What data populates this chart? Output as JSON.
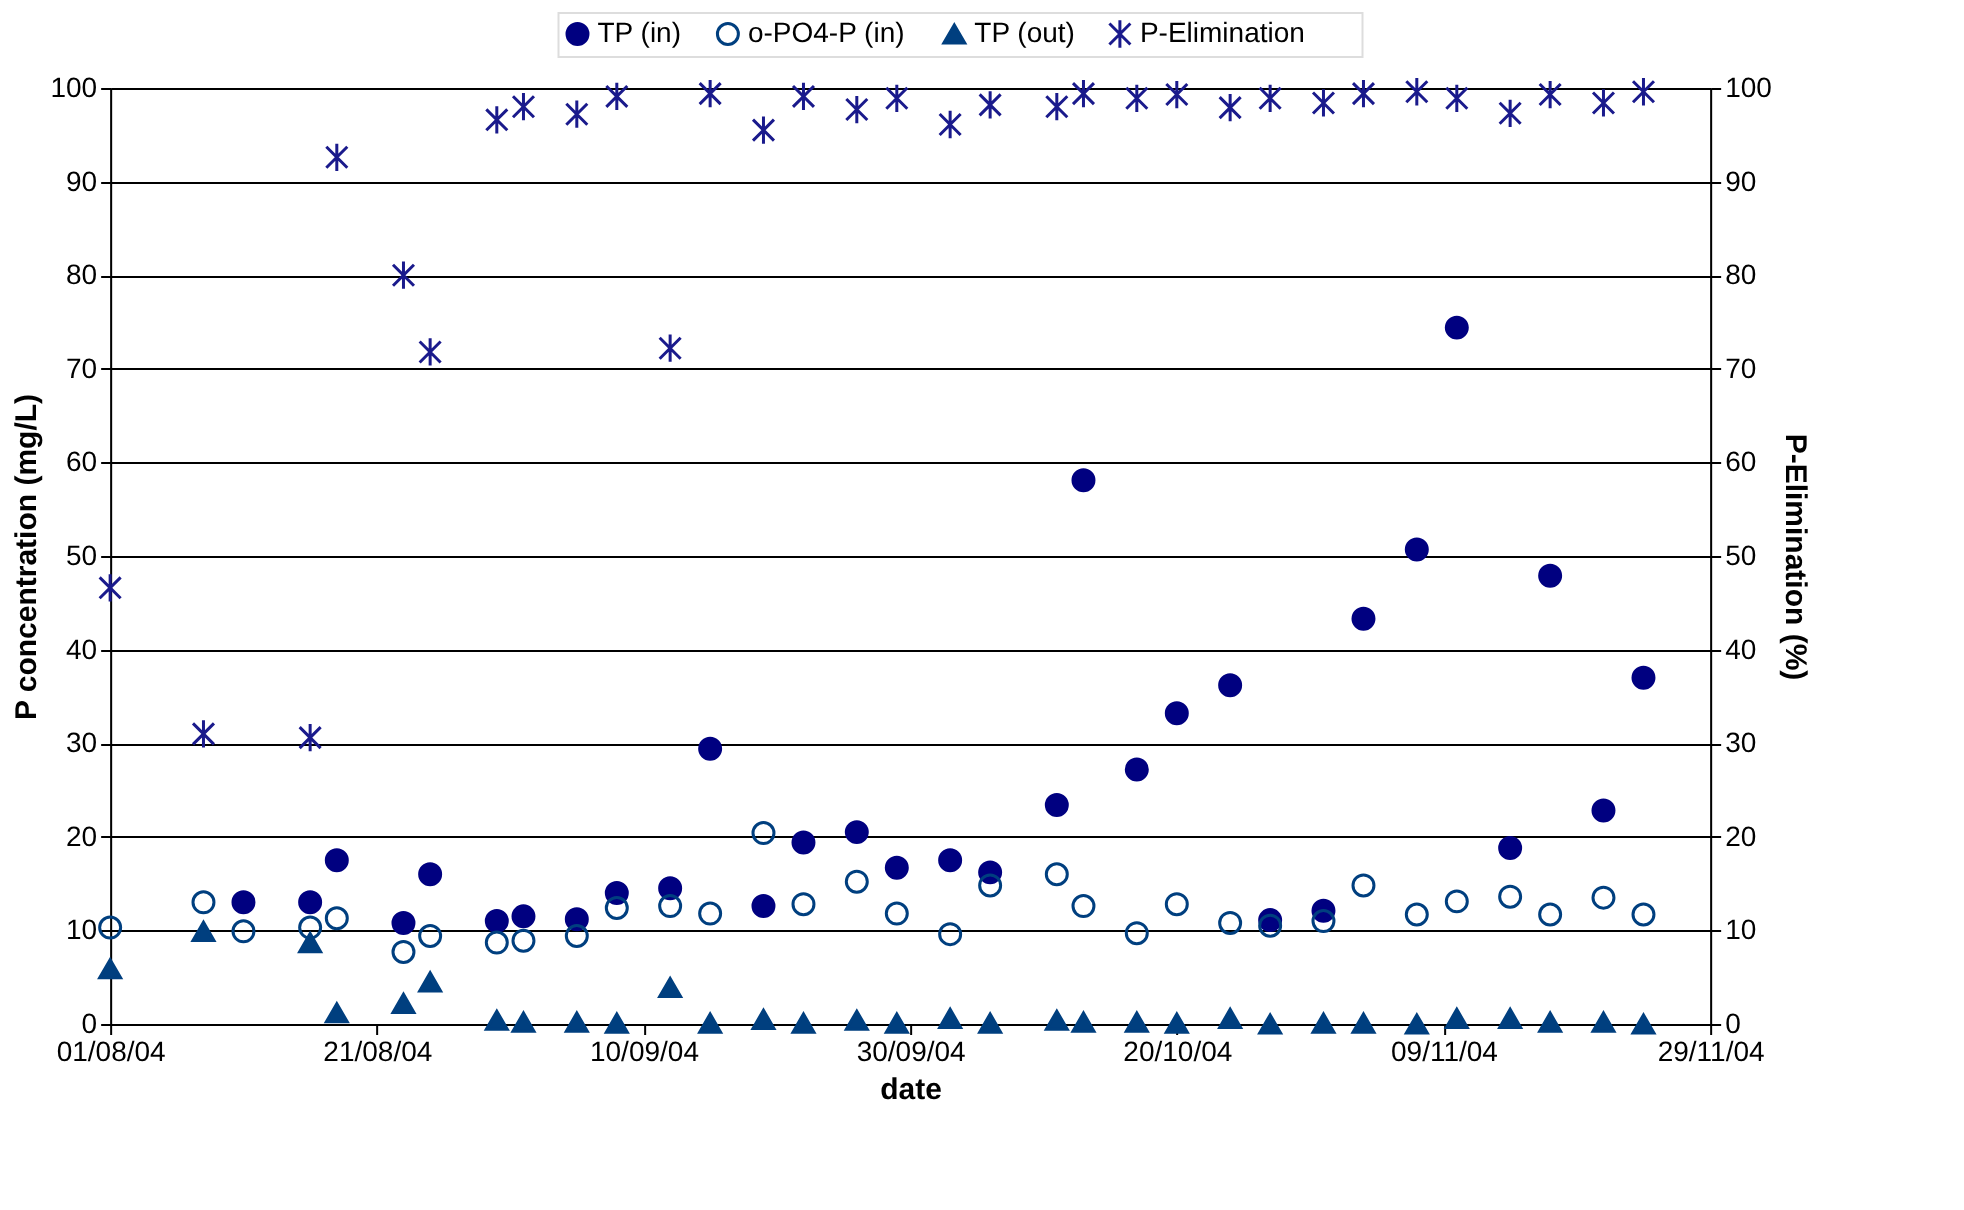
{
  "chart_data": {
    "type": "scatter",
    "xlabel": "date",
    "ylabel": "P concentration (mg/L)",
    "y2label": "P-Elimination (%)",
    "xlim": [
      "2004-08-01",
      "2004-11-29"
    ],
    "xticks": [
      {
        "value": "2004-08-01",
        "label": "01/08/04"
      },
      {
        "value": "2004-08-21",
        "label": "21/08/04"
      },
      {
        "value": "2004-09-10",
        "label": "10/09/04"
      },
      {
        "value": "2004-09-30",
        "label": "30/09/04"
      },
      {
        "value": "2004-10-20",
        "label": "20/10/04"
      },
      {
        "value": "2004-11-09",
        "label": "09/11/04"
      },
      {
        "value": "2004-11-29",
        "label": "29/11/04"
      }
    ],
    "ylim": [
      0,
      100
    ],
    "yticks": [
      0,
      10,
      20,
      30,
      40,
      50,
      60,
      70,
      80,
      90,
      100
    ],
    "y2lim": [
      0,
      100
    ],
    "y2ticks": [
      0,
      10,
      20,
      30,
      40,
      50,
      60,
      70,
      80,
      90,
      100
    ],
    "grid": "y",
    "legend": "top",
    "series": [
      {
        "name": "TP (in)",
        "color": "#000080",
        "marker": "circle",
        "x": [
          "2004-08-11",
          "2004-08-16",
          "2004-08-18",
          "2004-08-23",
          "2004-08-25",
          "2004-08-30",
          "2004-09-01",
          "2004-09-05",
          "2004-09-08",
          "2004-09-12",
          "2004-09-15",
          "2004-09-19",
          "2004-09-22",
          "2004-09-26",
          "2004-09-29",
          "2004-10-03",
          "2004-10-06",
          "2004-10-11",
          "2004-10-13",
          "2004-10-17",
          "2004-10-20",
          "2004-10-24",
          "2004-10-27",
          "2004-10-31",
          "2004-11-03",
          "2004-11-07",
          "2004-11-10",
          "2004-11-14",
          "2004-11-17",
          "2004-11-21",
          "2004-11-24"
        ],
        "values": [
          13,
          13,
          17.5,
          10.8,
          16,
          11,
          11.5,
          11.2,
          14,
          14.5,
          29.4,
          12.6,
          19.4,
          20.5,
          16.7,
          17.5,
          16.2,
          23.4,
          58.1,
          27.2,
          33.2,
          36.2,
          11.1,
          12.1,
          43.3,
          50.7,
          74.4,
          18.8,
          47.9,
          22.8,
          37
        ]
      },
      {
        "name": "o-PO4-P (in)",
        "color": "#003f7f",
        "marker": "circle",
        "x": [
          "2004-08-01",
          "2004-08-08",
          "2004-08-11",
          "2004-08-16",
          "2004-08-18",
          "2004-08-23",
          "2004-08-25",
          "2004-08-30",
          "2004-09-01",
          "2004-09-05",
          "2004-09-08",
          "2004-09-12",
          "2004-09-15",
          "2004-09-19",
          "2004-09-22",
          "2004-09-26",
          "2004-09-29",
          "2004-10-03",
          "2004-10-06",
          "2004-10-11",
          "2004-10-13",
          "2004-10-17",
          "2004-10-20",
          "2004-10-24",
          "2004-10-27",
          "2004-10-31",
          "2004-11-03",
          "2004-11-07",
          "2004-11-10",
          "2004-11-14",
          "2004-11-17",
          "2004-11-21",
          "2004-11-24"
        ],
        "values": [
          10.3,
          13,
          9.9,
          10.3,
          11.3,
          7.7,
          9.4,
          8.7,
          8.9,
          9.4,
          12.4,
          12.6,
          11.8,
          20.4,
          12.8,
          15.2,
          11.8,
          9.6,
          14.8,
          16,
          12.6,
          9.7,
          12.8,
          10.8,
          10.5,
          11,
          14.8,
          11.7,
          13.1,
          13.6,
          11.7,
          13.5,
          11.7
        ]
      },
      {
        "name": "TP (out)",
        "color": "#003f7f",
        "marker": "triangle",
        "x": [
          "2004-08-01",
          "2004-08-08",
          "2004-08-16",
          "2004-08-18",
          "2004-08-23",
          "2004-08-25",
          "2004-08-30",
          "2004-09-01",
          "2004-09-05",
          "2004-09-08",
          "2004-09-12",
          "2004-09-15",
          "2004-09-19",
          "2004-09-22",
          "2004-09-26",
          "2004-09-29",
          "2004-10-03",
          "2004-10-06",
          "2004-10-11",
          "2004-10-13",
          "2004-10-17",
          "2004-10-20",
          "2004-10-24",
          "2004-10-27",
          "2004-10-31",
          "2004-11-03",
          "2004-11-07",
          "2004-11-10",
          "2004-11-14",
          "2004-11-17",
          "2004-11-21",
          "2004-11-24"
        ],
        "values": [
          5.9,
          9.9,
          8.7,
          1.2,
          2.2,
          4.5,
          0.4,
          0.2,
          0.2,
          0.1,
          3.9,
          0.1,
          0.5,
          0.1,
          0.4,
          0.1,
          0.6,
          0.1,
          0.4,
          0.2,
          0.2,
          0.1,
          0.6,
          0,
          0.1,
          0.1,
          0,
          0.6,
          0.6,
          0.2,
          0.2,
          0
        ]
      },
      {
        "name": "P-Elimination",
        "color": "#1a1a8c",
        "marker": "cross",
        "axis": "y2",
        "x": [
          "2004-08-01",
          "2004-08-08",
          "2004-08-16",
          "2004-08-18",
          "2004-08-23",
          "2004-08-25",
          "2004-08-30",
          "2004-09-01",
          "2004-09-05",
          "2004-09-08",
          "2004-09-12",
          "2004-09-15",
          "2004-09-19",
          "2004-09-22",
          "2004-09-26",
          "2004-09-29",
          "2004-10-03",
          "2004-10-06",
          "2004-10-11",
          "2004-10-13",
          "2004-10-17",
          "2004-10-20",
          "2004-10-24",
          "2004-10-27",
          "2004-10-31",
          "2004-11-03",
          "2004-11-07",
          "2004-11-10",
          "2004-11-14",
          "2004-11-17",
          "2004-11-21",
          "2004-11-24"
        ],
        "values": [
          46.6,
          31,
          30.6,
          92.6,
          80,
          71.8,
          96.6,
          98,
          97.2,
          99.1,
          72.2,
          99.4,
          95.5,
          99.1,
          97.7,
          98.9,
          96.1,
          98.2,
          98,
          99.4,
          98.9,
          99.3,
          97.9,
          98.9,
          98.4,
          99.4,
          99.6,
          98.9,
          97.3,
          99.3,
          98.4,
          99.6
        ]
      }
    ]
  }
}
